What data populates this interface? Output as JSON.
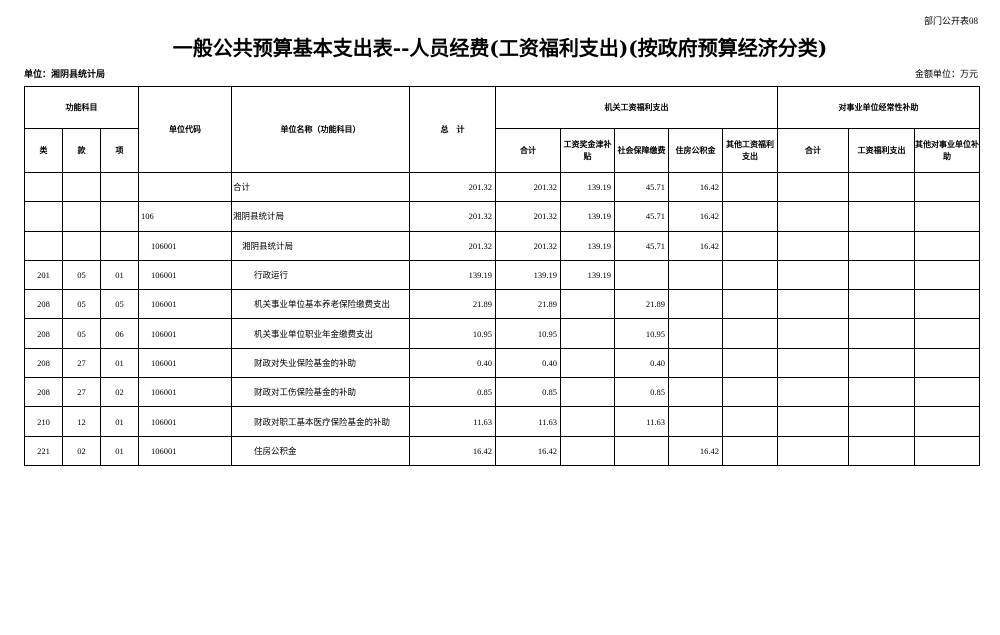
{
  "header": {
    "form_no": "部门公开表08",
    "title": "一般公共预算基本支出表--人员经费(工资福利支出)(按政府预算经济分类)",
    "unit": "单位：湘阴县统计局",
    "money_unit": "金额单位：万元"
  },
  "table": {
    "group_headers": {
      "function": "功能科目",
      "code": "单位代码",
      "name": "单位名称（功能科目）",
      "total": "总　计",
      "wage": "机关工资福利支出",
      "subsidy": "对事业单位经常性补助"
    },
    "sub_headers": [
      "类",
      "款",
      "项",
      "合计",
      "工资奖金津补贴",
      "社会保障缴费",
      "住房公积金",
      "其他工资福利支出",
      "合计",
      "工资福利支出",
      "其他对事业单位补助"
    ],
    "rows": [
      [
        null,
        null,
        null,
        null,
        "合计",
        "201.32",
        "201.32",
        "139.19",
        "45.71",
        "16.42",
        null,
        null,
        null,
        null
      ],
      [
        null,
        null,
        null,
        "106",
        "湘阴县统计局",
        "201.32",
        "201.32",
        "139.19",
        "45.71",
        "16.42",
        null,
        null,
        null,
        null
      ],
      [
        null,
        null,
        null,
        "106001",
        "湘阴县统计局",
        "201.32",
        "201.32",
        "139.19",
        "45.71",
        "16.42",
        null,
        null,
        null,
        null
      ],
      [
        "201",
        "05",
        "01",
        "106001",
        "行政运行",
        "139.19",
        "139.19",
        "139.19",
        null,
        null,
        null,
        null,
        null,
        null
      ],
      [
        "208",
        "05",
        "05",
        "106001",
        "机关事业单位基本养老保险缴费支出",
        "21.89",
        "21.89",
        null,
        "21.89",
        null,
        null,
        null,
        null,
        null
      ],
      [
        "208",
        "05",
        "06",
        "106001",
        "机关事业单位职业年金缴费支出",
        "10.95",
        "10.95",
        null,
        "10.95",
        null,
        null,
        null,
        null,
        null
      ],
      [
        "208",
        "27",
        "01",
        "106001",
        "财政对失业保险基金的补助",
        "0.40",
        "0.40",
        null,
        "0.40",
        null,
        null,
        null,
        null,
        null
      ],
      [
        "208",
        "27",
        "02",
        "106001",
        "财政对工伤保险基金的补助",
        "0.85",
        "0.85",
        null,
        "0.85",
        null,
        null,
        null,
        null,
        null
      ],
      [
        "210",
        "12",
        "01",
        "106001",
        "财政对职工基本医疗保险基金的补助",
        "11.63",
        "11.63",
        null,
        "11.63",
        null,
        null,
        null,
        null,
        null
      ],
      [
        "221",
        "02",
        "01",
        "106001",
        "住房公积金",
        "16.42",
        "16.42",
        null,
        null,
        "16.42",
        null,
        null,
        null,
        null
      ]
    ]
  }
}
